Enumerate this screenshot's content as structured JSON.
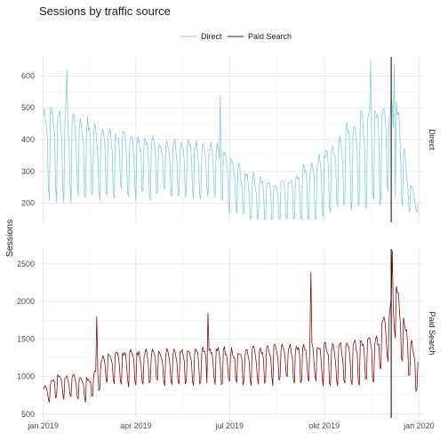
{
  "chart_data": {
    "type": "line",
    "title": "Sessions by traffic source",
    "xlabel": "",
    "ylabel": "Sessions",
    "x_ticks": [
      "jan 2019",
      "apr 2019",
      "jul 2019",
      "okt 2019",
      "jan 2020"
    ],
    "x_range": [
      "2018-12-28",
      "2020-01-05"
    ],
    "vline_date": "2019-12-05",
    "legend_position": "top",
    "grid": true,
    "panels": [
      {
        "strip": "Direct",
        "series": "Direct",
        "color": "#7ec8e3",
        "ylim": [
          140,
          660
        ],
        "y_ticks": [
          200,
          300,
          400,
          500,
          600
        ],
        "anchors": [
          [
            "2019-01-01",
            400,
            170
          ],
          [
            "2019-01-25",
            390,
            180
          ],
          [
            "2019-02-20",
            360,
            140
          ],
          [
            "2019-04-01",
            340,
            120
          ],
          [
            "2019-05-15",
            335,
            110
          ],
          [
            "2019-06-15",
            320,
            110
          ],
          [
            "2019-07-20",
            235,
            95
          ],
          [
            "2019-08-15",
            215,
            85
          ],
          [
            "2019-09-10",
            235,
            120
          ],
          [
            "2019-10-10",
            310,
            130
          ],
          [
            "2019-11-05",
            370,
            200
          ],
          [
            "2019-11-25",
            410,
            210
          ],
          [
            "2019-12-12",
            400,
            200
          ],
          [
            "2019-12-20",
            260,
            80
          ],
          [
            "2019-12-31",
            190,
            20
          ]
        ],
        "spikes": [
          [
            "2019-01-24",
            618
          ],
          [
            "2019-06-22",
            538
          ],
          [
            "2019-11-15",
            648
          ],
          [
            "2019-12-08",
            635
          ]
        ]
      },
      {
        "strip": "Paid Search",
        "series": "Paid Search",
        "color": "#800000",
        "ylim": [
          450,
          2700
        ],
        "y_ticks": [
          500,
          1000,
          1500,
          2000,
          2500
        ],
        "anchors": [
          [
            "2019-01-01",
            760,
            140
          ],
          [
            "2019-01-15",
            920,
            200
          ],
          [
            "2019-02-15",
            870,
            200
          ],
          [
            "2019-03-01",
            1150,
            260
          ],
          [
            "2019-04-15",
            1180,
            290
          ],
          [
            "2019-06-01",
            1200,
            300
          ],
          [
            "2019-07-15",
            1180,
            290
          ],
          [
            "2019-09-01",
            1250,
            320
          ],
          [
            "2019-10-15",
            1220,
            340
          ],
          [
            "2019-11-20",
            1300,
            350
          ],
          [
            "2019-12-03",
            1650,
            450
          ],
          [
            "2019-12-08",
            2050,
            450
          ],
          [
            "2019-12-18",
            1500,
            420
          ],
          [
            "2019-12-31",
            1050,
            300
          ]
        ],
        "spikes": [
          [
            "2019-02-22",
            1800
          ],
          [
            "2019-06-10",
            1850
          ],
          [
            "2019-09-18",
            2390
          ],
          [
            "2019-12-06",
            2680
          ]
        ]
      }
    ]
  }
}
